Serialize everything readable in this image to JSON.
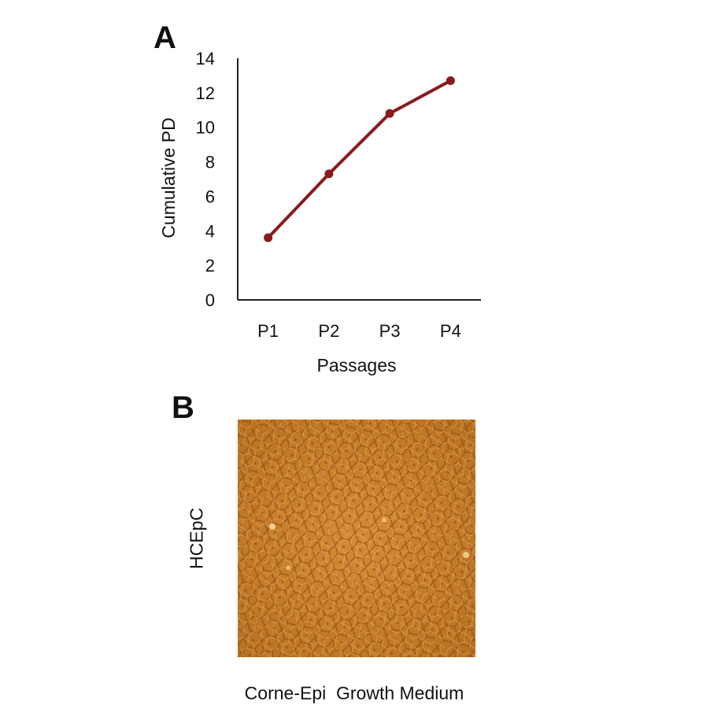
{
  "panels": {
    "a_label": "A",
    "b_label": "B"
  },
  "chart_data": {
    "type": "line",
    "categories": [
      "P1",
      "P2",
      "P3",
      "P4"
    ],
    "series": [
      {
        "values": [
          3.6,
          7.3,
          10.8,
          12.7
        ]
      }
    ],
    "xlabel": "Passages",
    "ylabel": "Cumulative PD",
    "ylim": [
      0,
      14
    ],
    "yticks": [
      0,
      2,
      4,
      6,
      8,
      10,
      12,
      14
    ],
    "grid": false,
    "line_color": "#8b1a1a"
  },
  "panel_b": {
    "row_label": "HCEpC",
    "column_label": "Corne-Epi  Growth Medium",
    "image_tint": "#c9822f"
  }
}
